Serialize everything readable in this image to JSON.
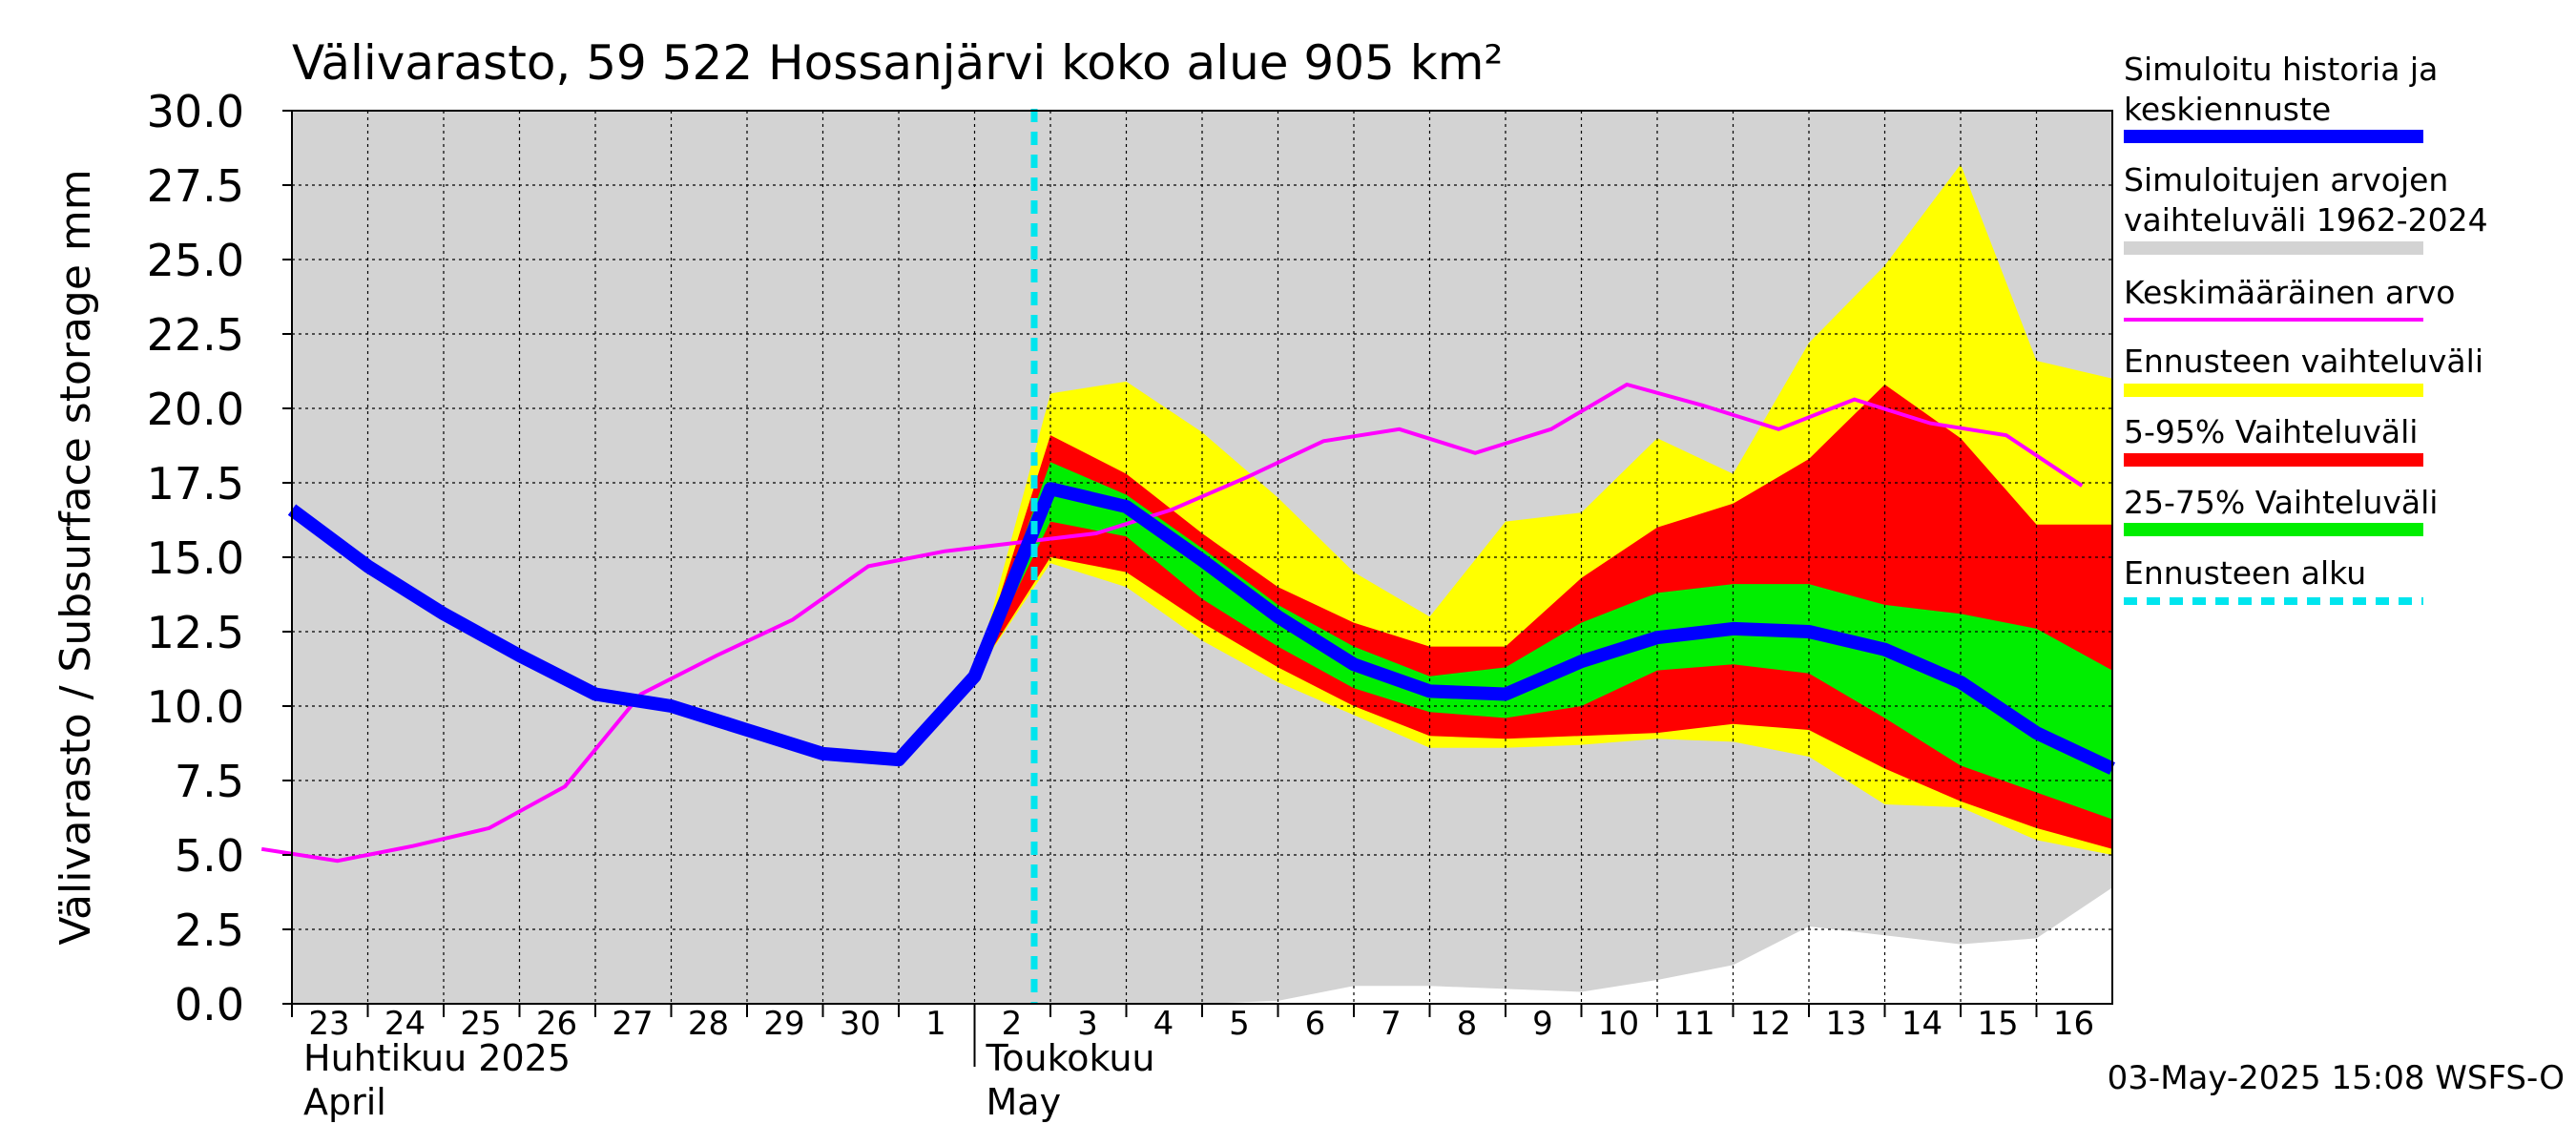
{
  "chart_data": {
    "type": "area",
    "title": "Välivarasto, 59 522 Hossanjärvi koko alue 905 km²",
    "ylabel": "Välivarasto / Subsurface storage  mm",
    "ylim": [
      0,
      30
    ],
    "y_ticks": [
      "0.0",
      "2.5",
      "5.0",
      "7.5",
      "10.0",
      "12.5",
      "15.0",
      "17.5",
      "20.0",
      "22.5",
      "25.0",
      "27.5",
      "30.0"
    ],
    "x_start_day_label": "23",
    "x_tick_labels": [
      "23",
      "24",
      "25",
      "26",
      "27",
      "28",
      "29",
      "30",
      "1",
      "2",
      "3",
      "4",
      "5",
      "6",
      "7",
      "8",
      "9",
      "10",
      "11",
      "12",
      "13",
      "14",
      "15",
      "16"
    ],
    "month_labels": [
      {
        "fi": "Huhtikuu  2025",
        "en": "April",
        "first_tick": "23"
      },
      {
        "fi": "Toukokuu",
        "en": "May",
        "first_tick": "2"
      }
    ],
    "forecast_start_day": "3",
    "grid": true,
    "legend_position": "right",
    "legend": [
      {
        "label": "Simuloitu historia ja keskiennuste",
        "color": "#0000ff",
        "style": "thick-line"
      },
      {
        "label": "Simuloitujen arvojen vaihteluväli 1962-2024",
        "color": "#d3d3d3",
        "style": "band"
      },
      {
        "label": "Keskimääräinen arvo",
        "color": "#ff00ff",
        "style": "thin-line"
      },
      {
        "label": "Ennusteen vaihteluväli",
        "color": "#ffff00",
        "style": "band"
      },
      {
        "label": "5-95% Vaihteluväli",
        "color": "#ff0000",
        "style": "band"
      },
      {
        "label": "25-75% Vaihteluväli",
        "color": "#00ee00",
        "style": "band"
      },
      {
        "label": "Ennusteen alku",
        "color": "#00e5ee",
        "style": "dashed-line"
      }
    ],
    "series": {
      "history_range": {
        "x": [
          23,
          24,
          25,
          26,
          27,
          28,
          29,
          30,
          31,
          32,
          33,
          34,
          35,
          36,
          37,
          38,
          39,
          40,
          41,
          42,
          43,
          44,
          45,
          46,
          47
        ],
        "upper": [
          30,
          30,
          30,
          30,
          30,
          30,
          30,
          30,
          30,
          30,
          30,
          30,
          30,
          30,
          30,
          30,
          30,
          30,
          30,
          30,
          30,
          30,
          30,
          30,
          30
        ],
        "lower": [
          0,
          0,
          0,
          0,
          0,
          0,
          0,
          0,
          0,
          0,
          0,
          0,
          0,
          0.1,
          0.6,
          0.6,
          0.5,
          0.4,
          0.8,
          1.3,
          2.6,
          2.3,
          2.0,
          2.2,
          3.9
        ]
      },
      "forecast_range": {
        "x": [
          32,
          33,
          34,
          35,
          36,
          37,
          38,
          39,
          40,
          41,
          42,
          43,
          44,
          45,
          46,
          47
        ],
        "upper": [
          11.0,
          20.5,
          20.9,
          19.2,
          17.0,
          14.5,
          13.0,
          16.2,
          16.5,
          19.0,
          17.8,
          22.2,
          24.8,
          28.2,
          21.6,
          21.0
        ],
        "lower": [
          11.0,
          14.8,
          14.0,
          12.2,
          10.8,
          9.7,
          8.6,
          8.6,
          8.7,
          8.9,
          8.8,
          8.3,
          6.7,
          6.6,
          5.5,
          5.0
        ]
      },
      "p5_95": {
        "x": [
          32,
          33,
          34,
          35,
          36,
          37,
          38,
          39,
          40,
          41,
          42,
          43,
          44,
          45,
          46,
          47
        ],
        "upper": [
          11.0,
          19.1,
          17.8,
          15.8,
          14.0,
          12.8,
          12.0,
          12.0,
          14.3,
          16.0,
          16.8,
          18.3,
          20.8,
          19.0,
          16.1,
          16.1
        ],
        "lower": [
          11.0,
          15.0,
          14.5,
          12.8,
          11.3,
          10.0,
          9.0,
          8.9,
          9.0,
          9.1,
          9.4,
          9.2,
          7.9,
          6.8,
          5.9,
          5.2
        ]
      },
      "p25_75": {
        "x": [
          32,
          33,
          34,
          35,
          36,
          37,
          38,
          39,
          40,
          41,
          42,
          43,
          44,
          45,
          46,
          47
        ],
        "upper": [
          11.0,
          18.2,
          17.1,
          15.3,
          13.4,
          12.0,
          11.0,
          11.3,
          12.8,
          13.8,
          14.1,
          14.1,
          13.4,
          13.1,
          12.6,
          11.2
        ],
        "lower": [
          11.0,
          16.2,
          15.7,
          13.6,
          12.0,
          10.6,
          9.8,
          9.6,
          10.0,
          11.2,
          11.4,
          11.1,
          9.6,
          8.0,
          7.1,
          6.2
        ]
      },
      "mean": {
        "x": [
          22.6,
          23.6,
          24.6,
          25.6,
          26.6,
          27.6,
          28.6,
          29.6,
          30.6,
          31.6,
          32.6,
          33.6,
          34.6,
          35.6,
          36.6,
          37.6,
          38.6,
          39.6,
          40.6,
          41.6,
          42.6,
          43.6,
          44.6,
          45.6,
          46.6
        ],
        "values": [
          5.2,
          4.8,
          5.3,
          5.9,
          7.3,
          10.4,
          11.7,
          12.9,
          14.7,
          15.2,
          15.5,
          15.8,
          16.6,
          17.7,
          18.9,
          19.3,
          18.5,
          19.3,
          20.8,
          20.1,
          19.3,
          20.3,
          19.5,
          19.1,
          17.4
        ]
      },
      "median": {
        "x": [
          23,
          24,
          25,
          26,
          27,
          28,
          29,
          30,
          31,
          32,
          33,
          34,
          35,
          36,
          37,
          38,
          39,
          40,
          41,
          42,
          43,
          44,
          45,
          46,
          47
        ],
        "values": [
          16.6,
          14.7,
          13.1,
          11.7,
          10.4,
          10.0,
          9.2,
          8.4,
          8.2,
          11.0,
          17.3,
          16.7,
          14.9,
          13.0,
          11.4,
          10.5,
          10.4,
          11.5,
          12.3,
          12.6,
          12.5,
          11.9,
          10.8,
          9.1,
          7.9
        ]
      }
    }
  },
  "timestamp": "03-May-2025 15:08 WSFS-O"
}
